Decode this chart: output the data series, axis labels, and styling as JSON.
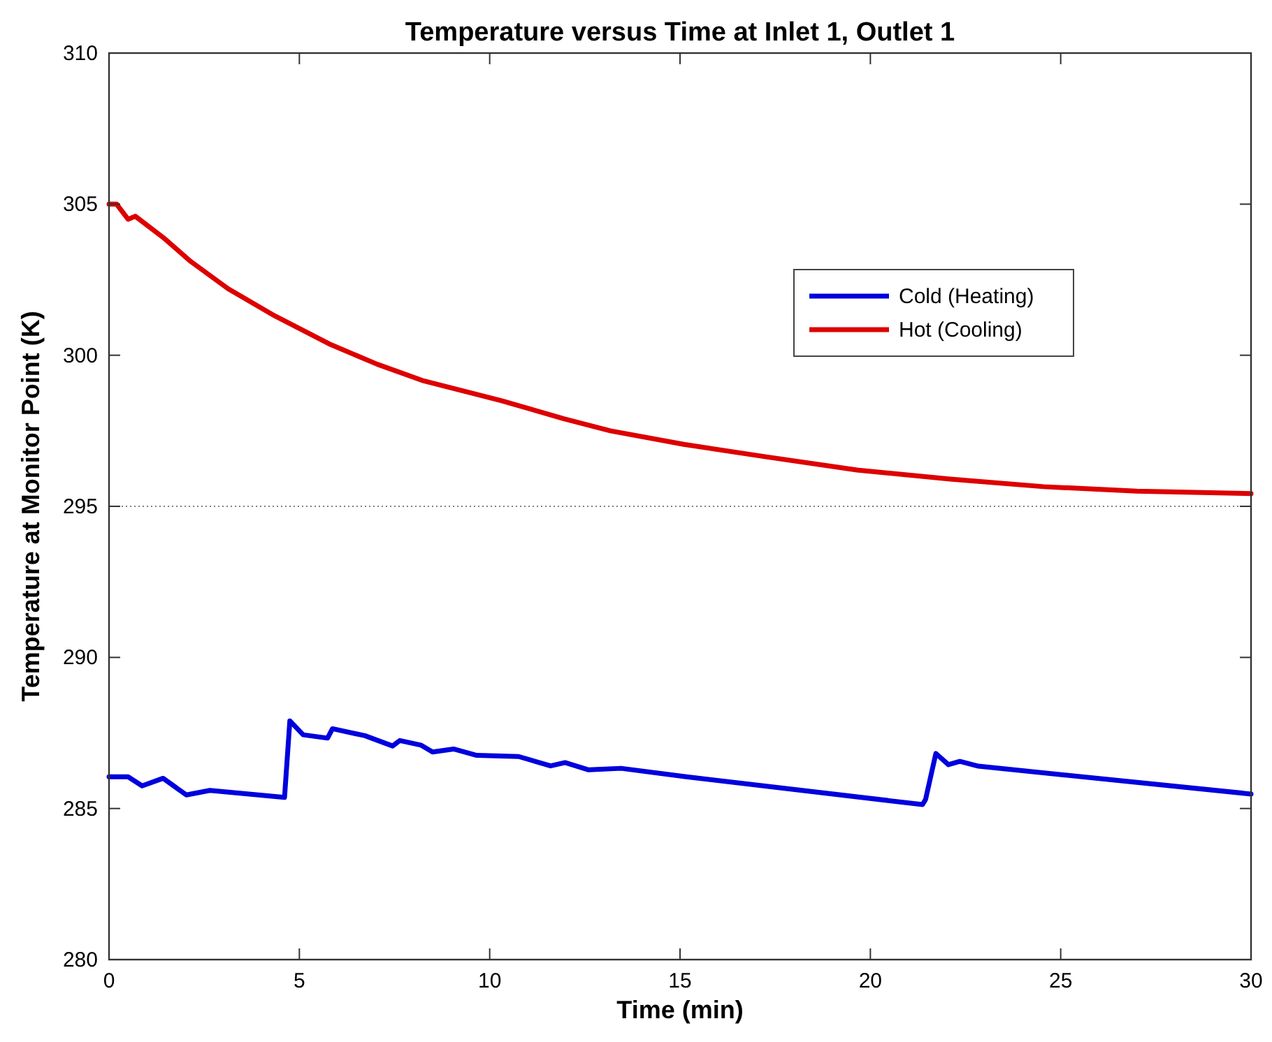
{
  "chart_data": {
    "type": "line",
    "title": "Temperature versus Time at Inlet 1, Outlet 1",
    "xlabel": "Time (min)",
    "ylabel": "Temperature at Monitor Point (K)",
    "xlim": [
      0,
      30
    ],
    "xticks": [
      0,
      5,
      10,
      15,
      20,
      25,
      30
    ],
    "ylim": [
      280,
      310
    ],
    "yticks": [
      280,
      285,
      290,
      295,
      300,
      305,
      310
    ],
    "grid": false,
    "legend": "top right",
    "line_style": "solid",
    "marker": "none",
    "ref_lines": [
      {
        "axis": "y",
        "value": 295,
        "label": null,
        "color": "#808080",
        "line_style": "dotted"
      }
    ],
    "series": [
      {
        "name": "Cold (Heating)",
        "color": "#0000dd",
        "x": [
          0,
          0.5,
          0.87,
          1.42,
          2.03,
          2.65,
          4.61,
          4.75,
          5.1,
          5.74,
          5.87,
          6.72,
          7.45,
          7.64,
          8.19,
          8.5,
          9.05,
          9.66,
          10.76,
          11.6,
          11.98,
          12.6,
          13.45,
          15.17,
          21.37,
          21.45,
          21.72,
          22.05,
          22.35,
          22.84,
          30
        ],
        "values": [
          286.05,
          286.05,
          285.75,
          286,
          285.45,
          285.6,
          285.37,
          287.9,
          287.44,
          287.33,
          287.64,
          287.41,
          287.07,
          287.25,
          287.1,
          286.87,
          286.97,
          286.76,
          286.72,
          286.41,
          286.52,
          286.28,
          286.33,
          286.05,
          285.13,
          285.3,
          286.82,
          286.45,
          286.56,
          286.4,
          285.48
        ]
      },
      {
        "name": "Hot (Cooling)",
        "color": "#dd0000",
        "x": [
          0,
          0.2,
          0.5,
          0.69,
          1.42,
          2.15,
          3.13,
          4.36,
          5.83,
          7.05,
          8.27,
          10.3,
          11.95,
          13.17,
          15.1,
          17.2,
          19.65,
          22.1,
          24.56,
          27,
          30
        ],
        "values": [
          305,
          305,
          304.5,
          304.6,
          303.9,
          303.1,
          302.2,
          301.3,
          300.35,
          299.7,
          299.15,
          298.5,
          297.9,
          297.5,
          297.05,
          296.65,
          296.2,
          295.9,
          295.65,
          295.5,
          295.42
        ]
      }
    ]
  }
}
